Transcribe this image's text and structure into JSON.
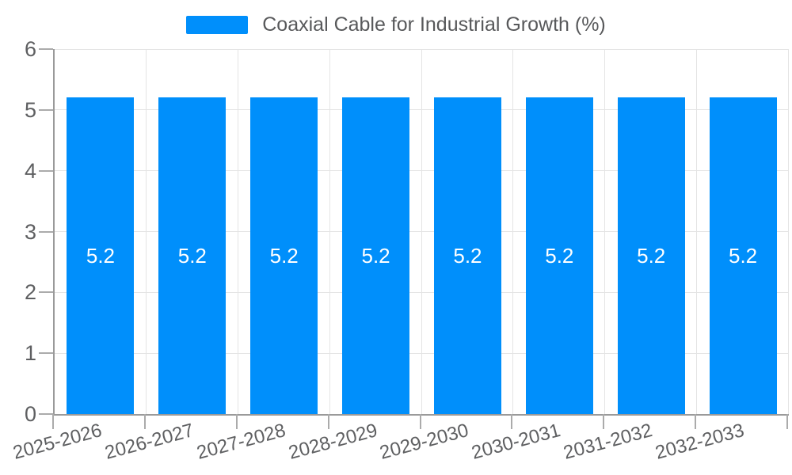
{
  "chart_data": {
    "type": "bar",
    "title": "",
    "categories": [
      "2025-2026",
      "2026-2027",
      "2027-2028",
      "2028-2029",
      "2029-2030",
      "2030-2031",
      "2031-2032",
      "2032-2033"
    ],
    "series": [
      {
        "name": "Coaxial Cable for Industrial Growth (%)",
        "values": [
          5.2,
          5.2,
          5.2,
          5.2,
          5.2,
          5.2,
          5.2,
          5.2
        ]
      }
    ],
    "bar_value_labels": [
      "5.2",
      "5.2",
      "5.2",
      "5.2",
      "5.2",
      "5.2",
      "5.2",
      "5.2"
    ],
    "xlabel": "",
    "ylabel": "",
    "ylim": [
      0,
      6
    ],
    "yticks": [
      0,
      1,
      2,
      3,
      4,
      5,
      6
    ],
    "grid": true,
    "legend_position": "top",
    "colors": {
      "bar": "#008FFB",
      "grid": "#e4e4e4",
      "axis": "#9a9a9a",
      "tick_mark": "#ababab",
      "tick_label": "#5e5f61",
      "legend_text": "#58595b",
      "bar_value_label": "#ffffff"
    }
  }
}
